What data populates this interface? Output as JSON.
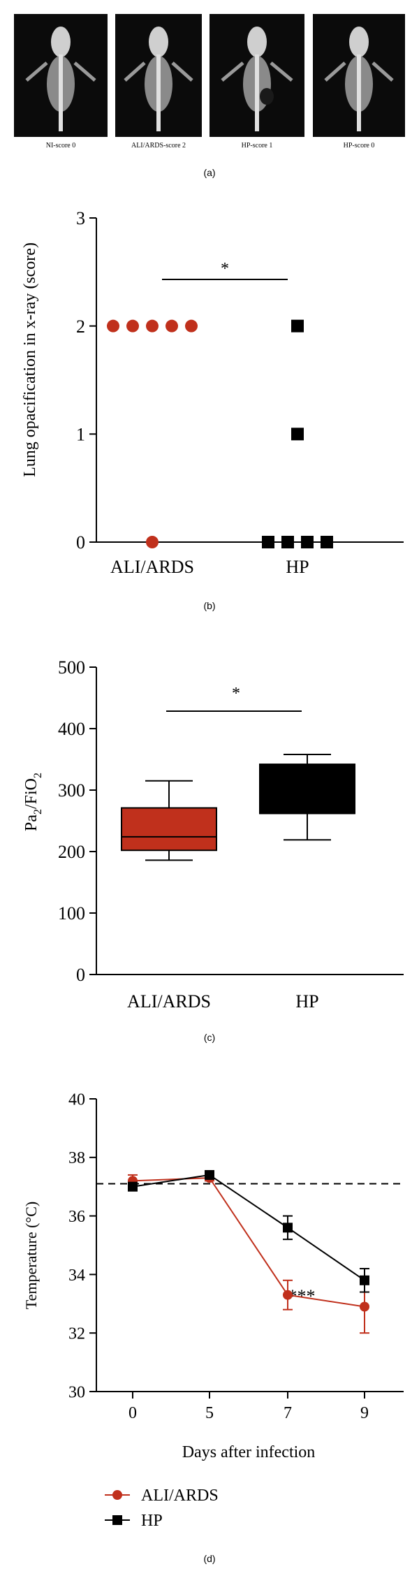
{
  "panel_labels": {
    "a": "(a)",
    "b": "(b)",
    "c": "(c)",
    "d": "(d)"
  },
  "panel_a": {
    "images": [
      {
        "caption": "NI-score 0"
      },
      {
        "caption": "ALI/ARDS-score 2"
      },
      {
        "caption": "HP-score 1"
      },
      {
        "caption": "HP-score 0"
      }
    ]
  },
  "colors": {
    "ali_ards": "#c0301c",
    "hp": "#000000"
  },
  "chart_data": [
    {
      "type": "scatter",
      "panel": "b",
      "ylabel": "Lung opacification in x-ray (score)",
      "ylim": [
        0,
        3
      ],
      "yticks": [
        0,
        1,
        2,
        3
      ],
      "categories": [
        "ALI/ARDS",
        "HP"
      ],
      "series": [
        {
          "name": "ALI/ARDS",
          "marker": "circle",
          "values": [
            2,
            2,
            2,
            2,
            2,
            0
          ]
        },
        {
          "name": "HP",
          "marker": "square",
          "values": [
            2,
            1,
            0,
            0,
            0,
            0
          ]
        }
      ],
      "significance": "*"
    },
    {
      "type": "box",
      "panel": "c",
      "ylabel": "PaO2/FiO2",
      "ylim": [
        0,
        500
      ],
      "yticks": [
        0,
        100,
        200,
        300,
        400,
        500
      ],
      "categories": [
        "ALI/ARDS",
        "HP"
      ],
      "series": [
        {
          "name": "ALI/ARDS",
          "min": 186,
          "q1": 202,
          "median": 224,
          "q3": 271,
          "max": 315
        },
        {
          "name": "HP",
          "min": 219,
          "q1": 262,
          "median": 262,
          "q3": 342,
          "max": 358
        }
      ],
      "significance": "*"
    },
    {
      "type": "line",
      "panel": "d",
      "xlabel": "Days after infection",
      "ylabel": "Temperature (°C)",
      "ylim": [
        30,
        40
      ],
      "yticks": [
        30,
        32,
        34,
        36,
        38,
        40
      ],
      "x": [
        0,
        5,
        7,
        9
      ],
      "reference_line": 37.1,
      "series": [
        {
          "name": "ALI/ARDS",
          "marker": "circle",
          "values": [
            37.2,
            37.3,
            33.3,
            32.9
          ],
          "errors": [
            0.2,
            0.1,
            0.5,
            0.9
          ]
        },
        {
          "name": "HP",
          "marker": "square",
          "values": [
            37.0,
            37.4,
            35.6,
            33.8
          ],
          "errors": [
            0.1,
            0.1,
            0.4,
            0.4
          ]
        }
      ],
      "annotation": "***",
      "legend": [
        "ALI/ARDS",
        "HP"
      ]
    }
  ]
}
